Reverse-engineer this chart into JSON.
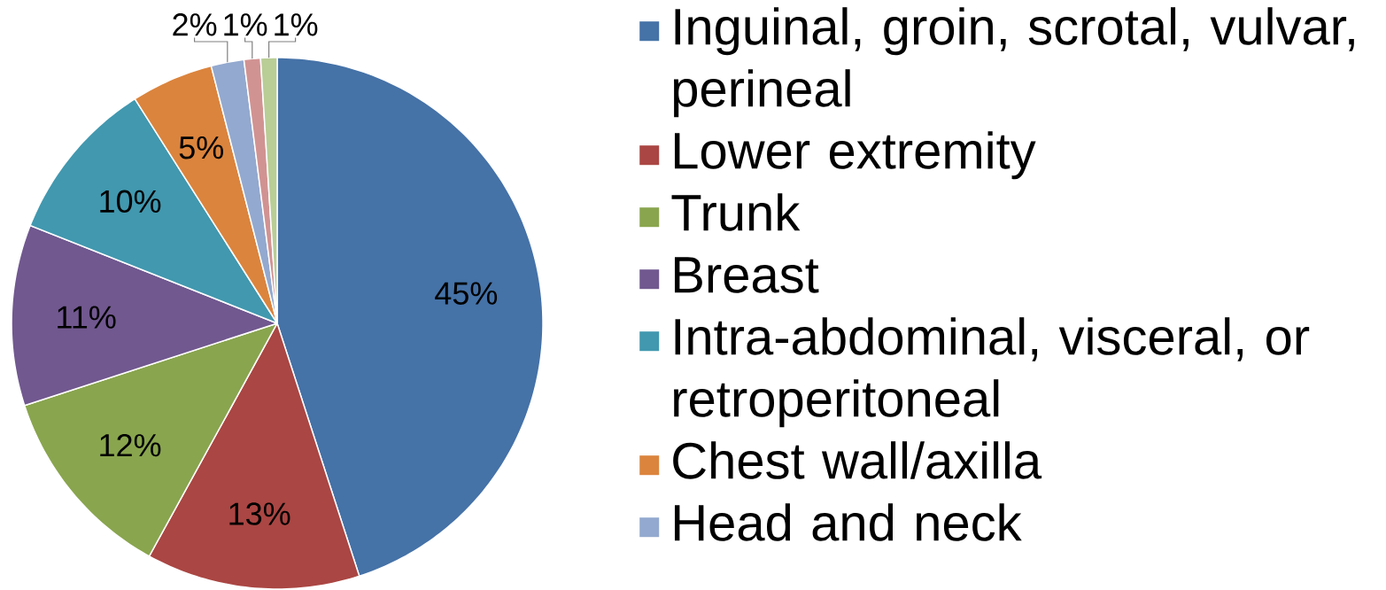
{
  "chart_data": {
    "type": "pie",
    "categories": [
      "Inguinal, groin, scrotal, vulvar, perineal",
      "Lower extremity",
      "Trunk",
      "Breast",
      "Intra-abdominal, visceral, or retroperitoneal",
      "Chest wall/axilla",
      "Head and neck",
      null,
      null
    ],
    "values": [
      45,
      13,
      12,
      11,
      10,
      5,
      2,
      1,
      1
    ],
    "value_labels": [
      "45%",
      "13%",
      "12%",
      "11%",
      "10%",
      "5%",
      "2%",
      "1%",
      "1%"
    ],
    "colors": [
      "#4572a7",
      "#aa4643",
      "#89a54e",
      "#71588f",
      "#4198af",
      "#db843d",
      "#93a9cf",
      "#d19392",
      "#b9cd96"
    ],
    "legend": "right"
  }
}
